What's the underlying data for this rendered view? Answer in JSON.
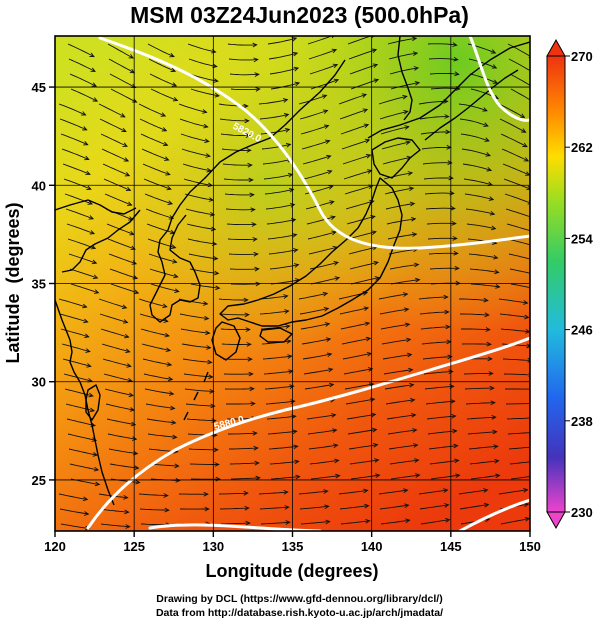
{
  "title": "MSM 03Z24Jun2023 (500.0hPa)",
  "xaxis": {
    "label": "Longitude (degrees)",
    "range": [
      120,
      150
    ],
    "ticks": [
      120,
      125,
      130,
      135,
      140,
      145,
      150
    ]
  },
  "yaxis": {
    "label": "Latitude  (degrees)",
    "range": [
      22.4,
      47.6
    ],
    "ticks": [
      25,
      30,
      35,
      40,
      45
    ]
  },
  "colorbar": {
    "range": [
      230,
      270
    ],
    "ticks": [
      "270",
      "262",
      "254",
      "246",
      "238",
      "230"
    ],
    "stops": [
      "#ee44cc",
      "#4433bb",
      "#2266ee",
      "#22bbdd",
      "#33cc66",
      "#99dd22",
      "#ffdd00",
      "#ff8800",
      "#ee3311"
    ]
  },
  "contours": [
    {
      "label": "5880.0",
      "level": 5880
    },
    {
      "label": "5820.0",
      "level": 5820
    }
  ],
  "credits": {
    "line1": "Drawing by DCL (https://www.gfd-dennou.org/library/dcl/)",
    "line2": "Data from http://database.rish.kyoto-u.ac.jp/arch/jmadata/"
  }
}
